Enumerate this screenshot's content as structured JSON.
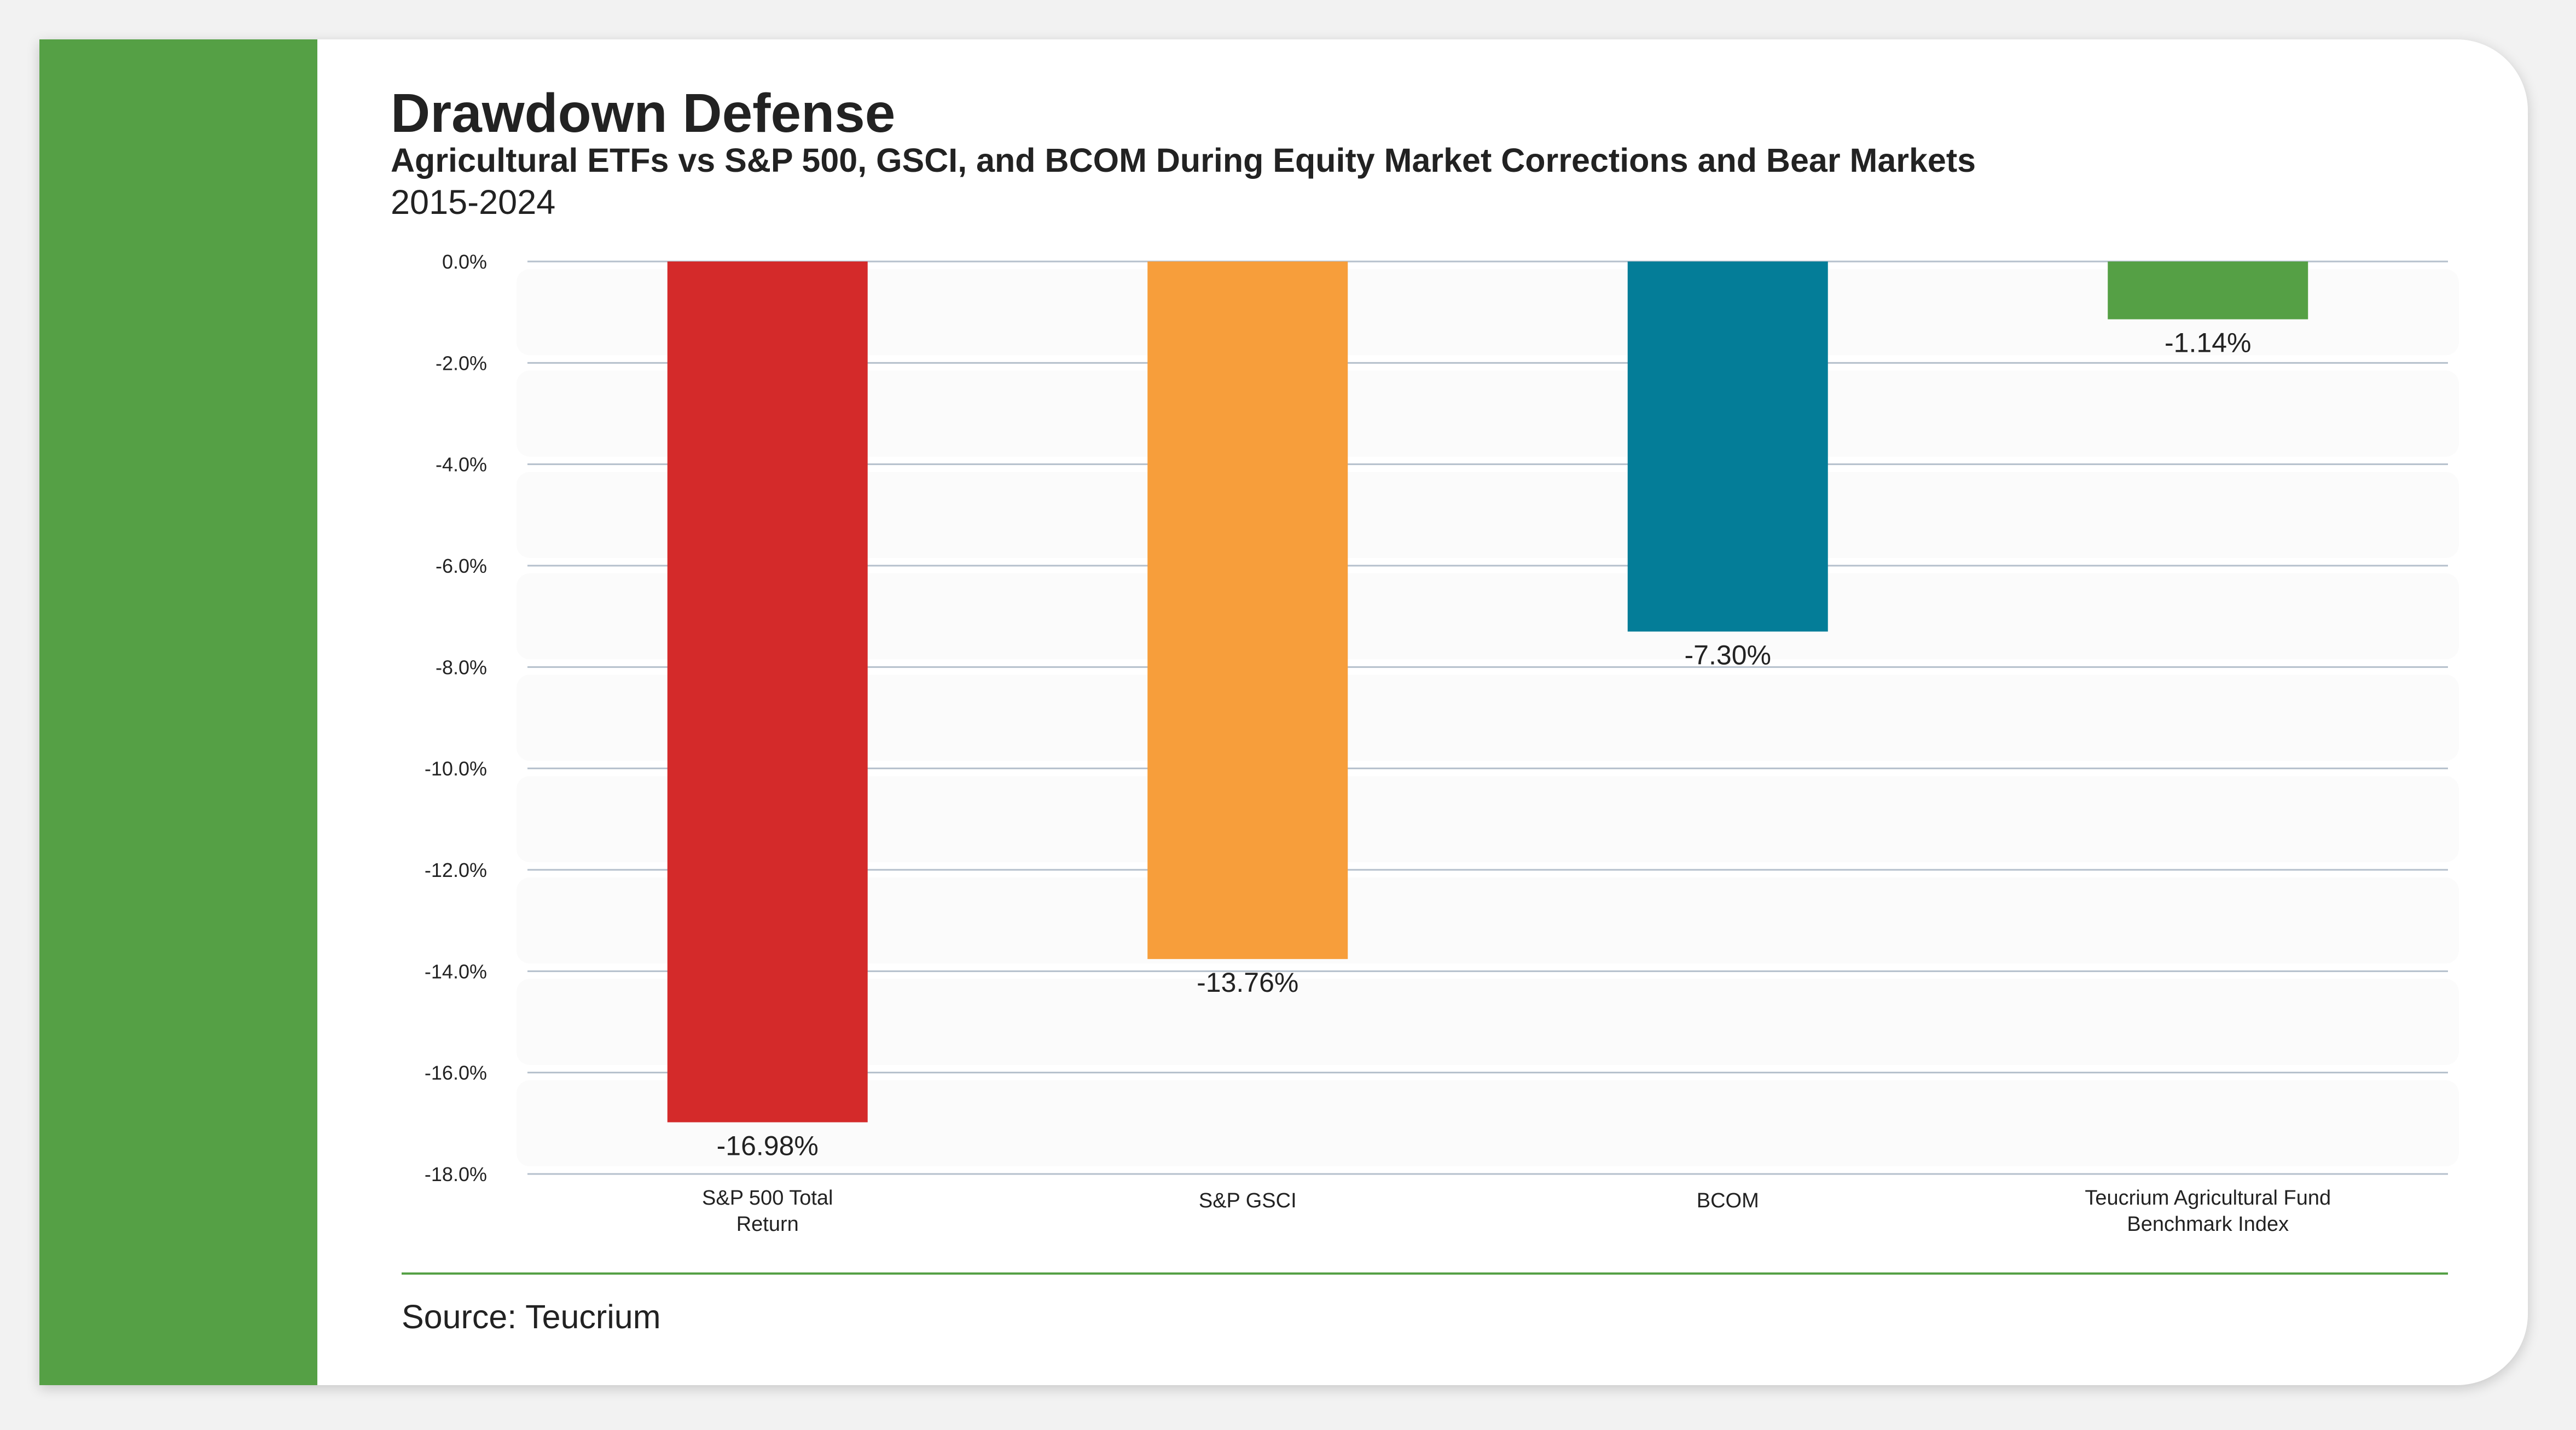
{
  "title": "Drawdown Defense",
  "subtitle": "Agricultural ETFs vs S&P 500, GSCI, and BCOM During Equity Market Corrections and Bear Markets",
  "period": "2015-2024",
  "source": "Source: Teucrium",
  "colors": {
    "accent": "#55a045",
    "grid": "#b5c0cc"
  },
  "chart_data": {
    "type": "bar",
    "title": "Drawdown Defense",
    "xlabel": "",
    "ylabel": "",
    "ylim": [
      -18,
      0
    ],
    "yticks": [
      0,
      -2,
      -4,
      -6,
      -8,
      -10,
      -12,
      -14,
      -16,
      -18
    ],
    "ytick_labels": [
      "0.0%",
      "-2.0%",
      "-4.0%",
      "-6.0%",
      "-8.0%",
      "-10.0%",
      "-12.0%",
      "-14.0%",
      "-16.0%",
      "-18.0%"
    ],
    "grid": true,
    "categories": [
      [
        "S&P 500 Total",
        "Return"
      ],
      [
        "S&P GSCI"
      ],
      [
        "BCOM"
      ],
      [
        "Teucrium Agricultural Fund",
        "Benchmark Index"
      ]
    ],
    "values": [
      -16.98,
      -13.76,
      -7.3,
      -1.14
    ],
    "value_labels": [
      "-16.98%",
      "-13.76%",
      "-7.30%",
      "-1.14%"
    ],
    "bar_colors": [
      "#d42a2a",
      "#f79e3b",
      "#047d98",
      "#55a045"
    ]
  }
}
